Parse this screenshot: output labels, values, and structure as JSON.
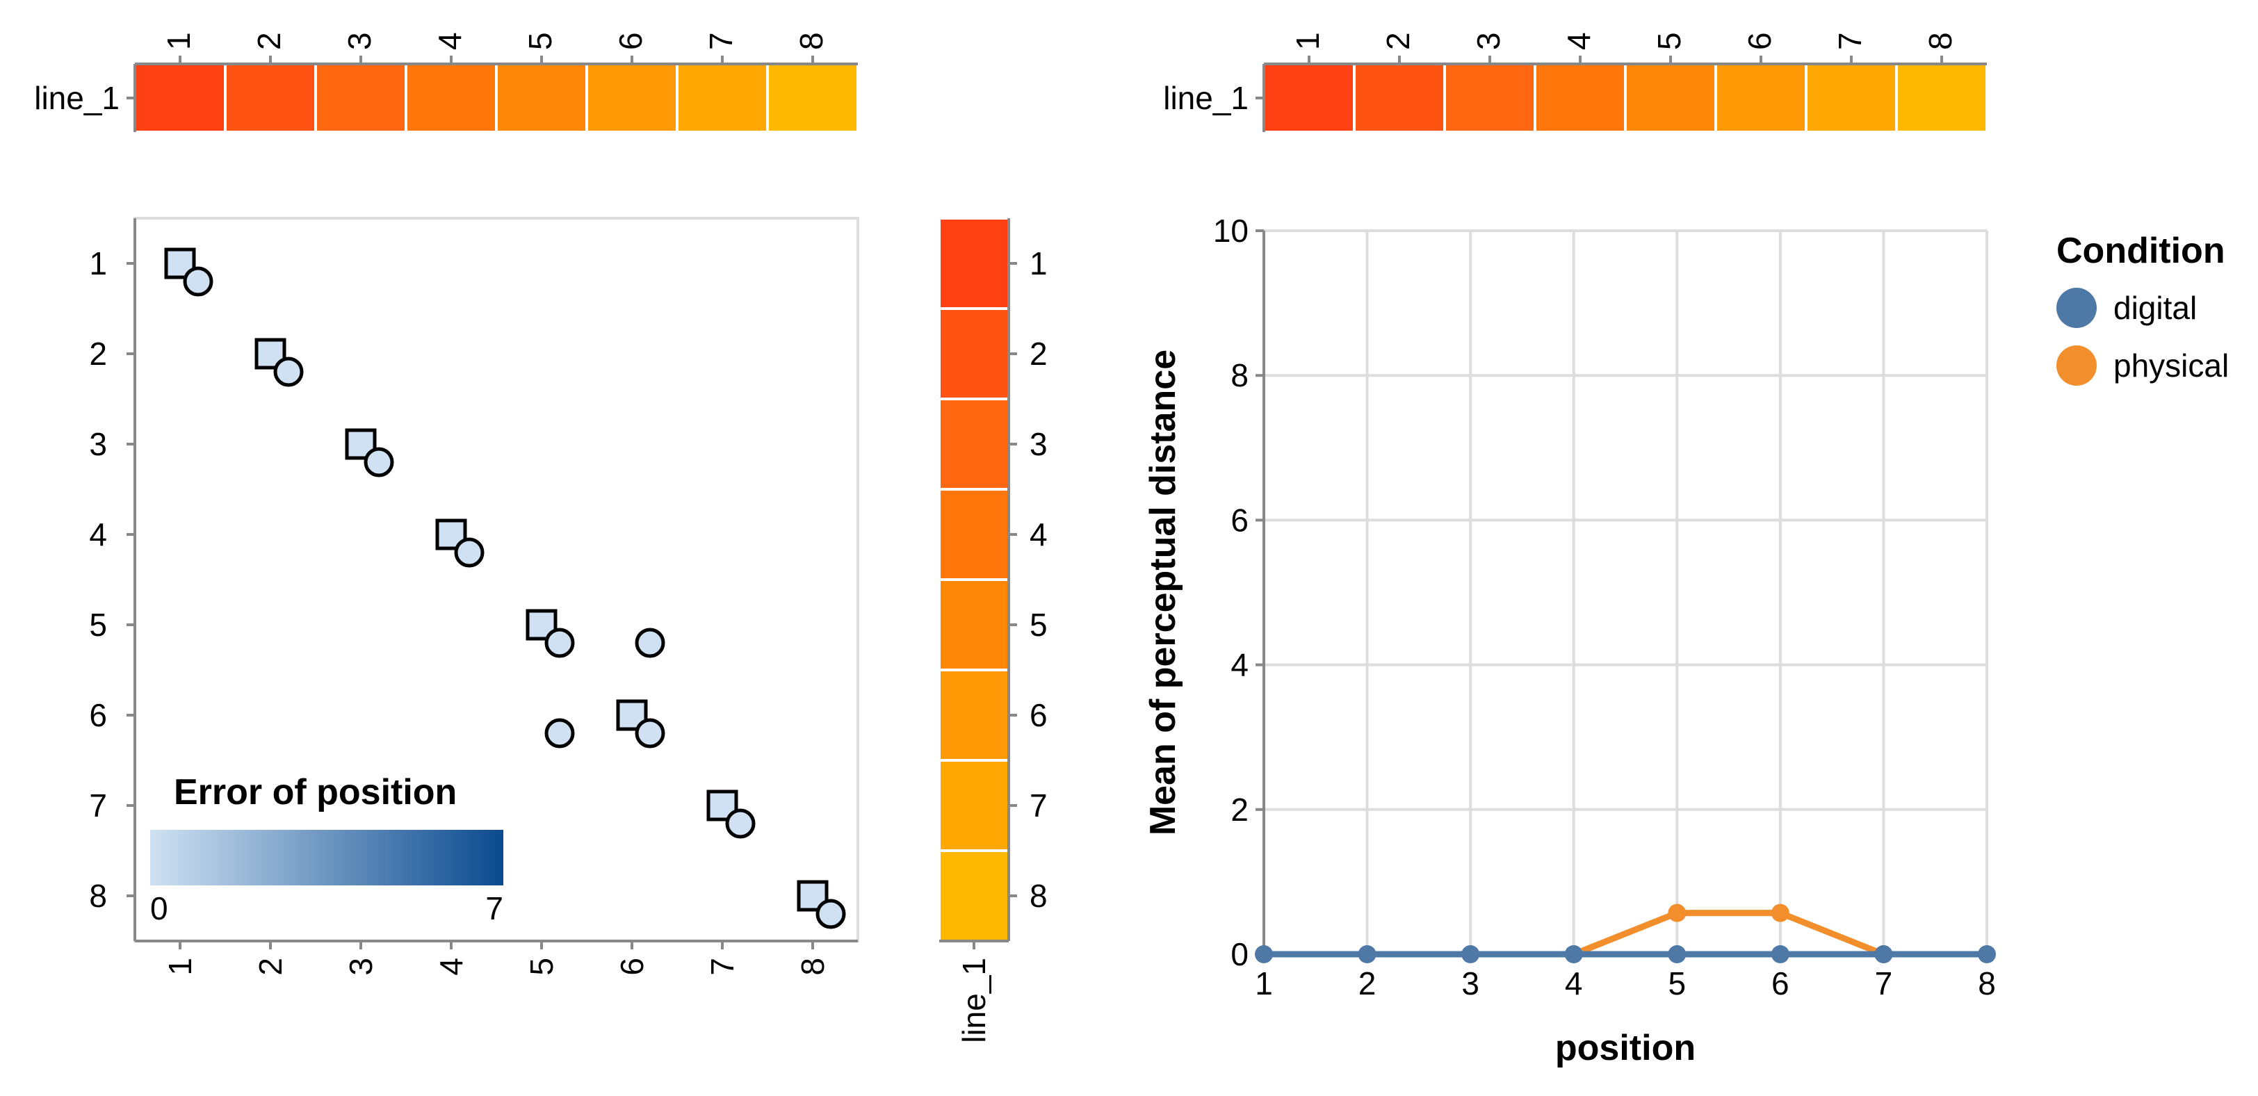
{
  "chart_data": [
    {
      "type": "heatmap",
      "x_ticks": [
        "1",
        "2",
        "3",
        "4",
        "5",
        "6",
        "7",
        "8"
      ],
      "row_label": "line_1",
      "colors": [
        "#ff4013",
        "#ff5313",
        "#ff6710",
        "#ff760b",
        "#ff8708",
        "#ff9905",
        "#ffa702",
        "#ffb800"
      ]
    },
    {
      "type": "scatter",
      "x_ticks": [
        "1",
        "2",
        "3",
        "4",
        "5",
        "6",
        "7",
        "8"
      ],
      "y_ticks": [
        "1",
        "2",
        "3",
        "4",
        "5",
        "6",
        "7",
        "8"
      ],
      "xlim": [
        0.5,
        8.5
      ],
      "ylim": [
        0.5,
        8.5
      ],
      "squares": [
        {
          "x": 1,
          "y": 1
        },
        {
          "x": 2,
          "y": 2
        },
        {
          "x": 3,
          "y": 3
        },
        {
          "x": 4,
          "y": 4
        },
        {
          "x": 5,
          "y": 5
        },
        {
          "x": 6,
          "y": 6
        },
        {
          "x": 7,
          "y": 7
        },
        {
          "x": 8,
          "y": 8
        }
      ],
      "circles": [
        {
          "x": 1,
          "y": 1
        },
        {
          "x": 2,
          "y": 2
        },
        {
          "x": 3,
          "y": 3
        },
        {
          "x": 4,
          "y": 4
        },
        {
          "x": 5,
          "y": 5
        },
        {
          "x": 6,
          "y": 5
        },
        {
          "x": 5,
          "y": 6
        },
        {
          "x": 6,
          "y": 6
        },
        {
          "x": 7,
          "y": 7
        },
        {
          "x": 8,
          "y": 8
        }
      ],
      "point_error": 0,
      "legend": {
        "title": "Error of position",
        "min_label": "0",
        "max_label": "7",
        "min_color": "#cfe1f2",
        "max_color": "#0b4a8f",
        "placement": "bottom-left"
      }
    },
    {
      "type": "heatmap",
      "orientation": "vertical",
      "y_ticks": [
        "1",
        "2",
        "3",
        "4",
        "5",
        "6",
        "7",
        "8"
      ],
      "column_label": "line_1",
      "colors": [
        "#ff4013",
        "#ff5313",
        "#ff6710",
        "#ff760b",
        "#ff8708",
        "#ff9905",
        "#ffa702",
        "#ffb800"
      ]
    },
    {
      "type": "heatmap",
      "x_ticks": [
        "1",
        "2",
        "3",
        "4",
        "5",
        "6",
        "7",
        "8"
      ],
      "row_label": "line_1",
      "colors": [
        "#ff4013",
        "#ff5313",
        "#ff6710",
        "#ff760b",
        "#ff8708",
        "#ff9905",
        "#ffa702",
        "#ffb800"
      ]
    },
    {
      "type": "line",
      "x": [
        1,
        2,
        3,
        4,
        5,
        6,
        7,
        8
      ],
      "xlabel": "position",
      "ylabel": "Mean of perceptual distance",
      "ylim": [
        0,
        10
      ],
      "y_ticks": [
        0,
        2,
        4,
        6,
        8,
        10
      ],
      "grid": true,
      "series": [
        {
          "name": "digital",
          "color": "#4e79a7",
          "values": [
            0,
            0,
            0,
            0,
            0,
            0,
            0,
            0
          ]
        },
        {
          "name": "physical",
          "color": "#f28e2b",
          "values": [
            null,
            null,
            null,
            0,
            0.57,
            0.57,
            0,
            null
          ]
        }
      ],
      "legend": {
        "title": "Condition",
        "placement": "right"
      }
    }
  ]
}
